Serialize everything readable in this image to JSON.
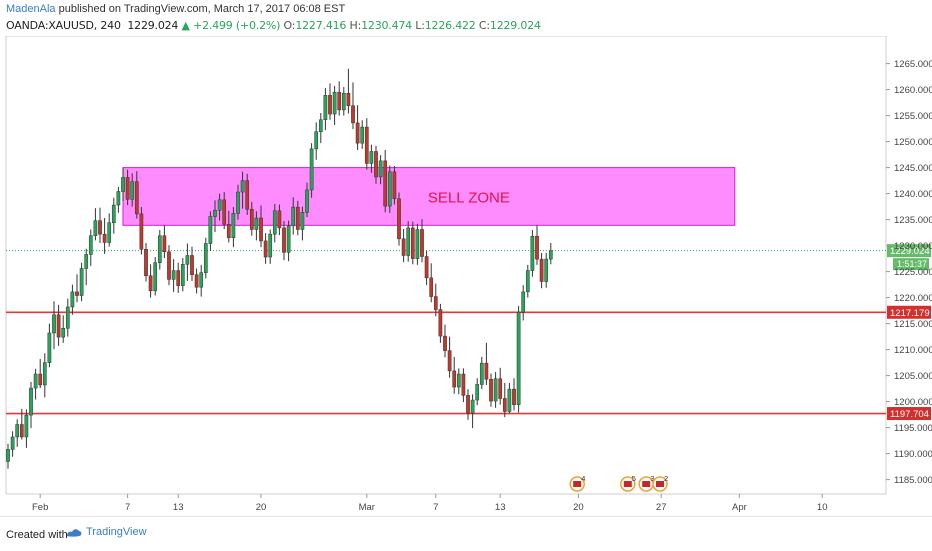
{
  "header": {
    "author": "MadenAla",
    "published": " published on TradingView.com, March 17, 2017 06:08 EST",
    "symbol": "OANDA:XAUUSD, 240",
    "last": "1229.024",
    "change": "▲ +2.499 (+0.2%)",
    "o_label": "O:",
    "o_value": "1227.416",
    "h_label": "H:",
    "h_value": "1230.474",
    "l_label": "L:",
    "l_value": "1226.422",
    "c_label": "C:",
    "c_value": "1229.024"
  },
  "footer": {
    "created_with": "Created with",
    "brand": "TradingView"
  },
  "colors": {
    "up": "#26a65b",
    "down": "#c0392b",
    "zone_fill": "#ff66ff",
    "support_line": "#e53935",
    "price_tag": "#d32f2f",
    "last_tag": "#66bb6a"
  },
  "chart_data": {
    "type": "candlestick",
    "symbol": "OANDA:XAUUSD",
    "timeframe": "240",
    "ylim": [
      1183,
      1268
    ],
    "y_ticks": [
      "1185.000",
      "1190.000",
      "1195.000",
      "1200.000",
      "1205.000",
      "1210.000",
      "1215.000",
      "1220.000",
      "1225.000",
      "1230.000",
      "1235.000",
      "1240.000",
      "1245.000",
      "1250.000",
      "1255.000",
      "1260.000",
      "1265.000"
    ],
    "x_ticks": [
      "Feb",
      "7",
      "13",
      "20",
      "Mar",
      "7",
      "13",
      "20",
      "27",
      "Apr",
      "10"
    ],
    "zone": {
      "label": "SELL ZONE",
      "low": 1233.9,
      "high": 1245.0,
      "from_bar": 25,
      "to_bar": 158
    },
    "levels": [
      {
        "value": 1217.179,
        "label": "1217.179"
      },
      {
        "value": 1197.704,
        "label": "1197.704"
      }
    ],
    "last_price": {
      "value": 1229.024,
      "label": "1229.024",
      "countdown": "1:51:37"
    },
    "event_markers": [
      "4",
      "5",
      "3",
      "2"
    ],
    "ohlc": [
      [
        1188.5,
        1191.9,
        1187.1,
        1190.8
      ],
      [
        1190.8,
        1194.3,
        1189.4,
        1193.2
      ],
      [
        1193.2,
        1196.6,
        1191.3,
        1195.6
      ],
      [
        1195.6,
        1198.6,
        1192.7,
        1193.2
      ],
      [
        1193.2,
        1198.5,
        1191.1,
        1197.4
      ],
      [
        1197.4,
        1203.8,
        1194.9,
        1202.6
      ],
      [
        1202.6,
        1206.3,
        1200.4,
        1205.3
      ],
      [
        1205.3,
        1208.2,
        1202.6,
        1203.2
      ],
      [
        1203.2,
        1209.3,
        1200.8,
        1207.5
      ],
      [
        1207.5,
        1215.0,
        1206.6,
        1213.2
      ],
      [
        1213.2,
        1219.3,
        1210.1,
        1216.7
      ],
      [
        1216.7,
        1218.6,
        1210.7,
        1212.4
      ],
      [
        1212.4,
        1216.6,
        1211.3,
        1214.1
      ],
      [
        1214.1,
        1219.8,
        1212.5,
        1218.2
      ],
      [
        1218.2,
        1222.5,
        1216.7,
        1221.1
      ],
      [
        1221.1,
        1224.5,
        1219.1,
        1220.4
      ],
      [
        1220.4,
        1226.7,
        1219.3,
        1225.6
      ],
      [
        1225.6,
        1229.4,
        1222.4,
        1228.3
      ],
      [
        1228.3,
        1233.1,
        1226.1,
        1231.9
      ],
      [
        1231.9,
        1237.2,
        1231.0,
        1234.8
      ],
      [
        1234.8,
        1237.3,
        1230.5,
        1232.2
      ],
      [
        1232.2,
        1235.3,
        1228.4,
        1230.6
      ],
      [
        1230.6,
        1236.2,
        1229.8,
        1234.4
      ],
      [
        1234.4,
        1239.2,
        1232.3,
        1237.8
      ],
      [
        1237.8,
        1241.3,
        1236.3,
        1240.4
      ],
      [
        1240.4,
        1245.0,
        1238.6,
        1243.1
      ],
      [
        1243.1,
        1244.6,
        1237.8,
        1238.9
      ],
      [
        1238.9,
        1243.9,
        1237.5,
        1242.3
      ],
      [
        1242.3,
        1244.3,
        1235.2,
        1236.1
      ],
      [
        1236.1,
        1237.4,
        1228.3,
        1229.3
      ],
      [
        1229.3,
        1230.5,
        1223.1,
        1224.2
      ],
      [
        1224.2,
        1226.4,
        1220.0,
        1221.3
      ],
      [
        1221.3,
        1227.8,
        1220.4,
        1226.7
      ],
      [
        1226.7,
        1233.0,
        1225.4,
        1231.9
      ],
      [
        1231.9,
        1233.9,
        1227.6,
        1228.8
      ],
      [
        1228.8,
        1230.1,
        1222.4,
        1223.5
      ],
      [
        1223.5,
        1227.4,
        1221.1,
        1225.2
      ],
      [
        1225.2,
        1226.7,
        1220.9,
        1222.3
      ],
      [
        1222.3,
        1227.6,
        1221.2,
        1226.4
      ],
      [
        1226.4,
        1230.4,
        1223.2,
        1228.1
      ],
      [
        1228.1,
        1229.8,
        1223.2,
        1224.4
      ],
      [
        1224.4,
        1225.6,
        1220.8,
        1222.0
      ],
      [
        1222.0,
        1226.3,
        1220.2,
        1224.8
      ],
      [
        1224.8,
        1231.5,
        1223.7,
        1230.4
      ],
      [
        1230.4,
        1236.6,
        1229.0,
        1235.6
      ],
      [
        1235.6,
        1238.7,
        1232.6,
        1236.8
      ],
      [
        1236.8,
        1240.0,
        1234.8,
        1238.8
      ],
      [
        1238.8,
        1240.3,
        1233.2,
        1234.1
      ],
      [
        1234.1,
        1236.7,
        1230.6,
        1231.5
      ],
      [
        1231.5,
        1237.4,
        1229.7,
        1236.2
      ],
      [
        1236.2,
        1241.7,
        1235.0,
        1240.3
      ],
      [
        1240.3,
        1244.2,
        1237.1,
        1242.5
      ],
      [
        1242.5,
        1243.8,
        1235.9,
        1237.0
      ],
      [
        1237.0,
        1238.4,
        1231.9,
        1233.1
      ],
      [
        1233.1,
        1236.6,
        1231.0,
        1235.3
      ],
      [
        1235.3,
        1237.7,
        1229.7,
        1230.9
      ],
      [
        1230.9,
        1232.4,
        1226.5,
        1227.8
      ],
      [
        1227.8,
        1233.1,
        1226.5,
        1232.2
      ],
      [
        1232.2,
        1238.0,
        1230.6,
        1236.7
      ],
      [
        1236.7,
        1237.9,
        1232.0,
        1233.4
      ],
      [
        1233.4,
        1234.7,
        1227.2,
        1228.7
      ],
      [
        1228.7,
        1234.8,
        1227.0,
        1233.8
      ],
      [
        1233.8,
        1239.3,
        1232.1,
        1237.4
      ],
      [
        1237.4,
        1238.6,
        1232.0,
        1233.1
      ],
      [
        1233.1,
        1237.5,
        1231.0,
        1236.4
      ],
      [
        1236.4,
        1242.1,
        1235.5,
        1240.7
      ],
      [
        1240.7,
        1249.7,
        1239.2,
        1248.6
      ],
      [
        1248.6,
        1253.7,
        1246.5,
        1251.9
      ],
      [
        1251.9,
        1255.5,
        1249.7,
        1254.2
      ],
      [
        1254.2,
        1260.3,
        1252.2,
        1258.9
      ],
      [
        1258.9,
        1261.2,
        1254.2,
        1255.3
      ],
      [
        1255.3,
        1260.7,
        1253.2,
        1259.5
      ],
      [
        1259.5,
        1261.6,
        1255.0,
        1256.1
      ],
      [
        1256.1,
        1260.5,
        1255.0,
        1259.3
      ],
      [
        1259.3,
        1264.0,
        1255.4,
        1256.9
      ],
      [
        1256.9,
        1261.4,
        1252.4,
        1253.6
      ],
      [
        1253.6,
        1257.0,
        1248.4,
        1249.7
      ],
      [
        1249.7,
        1254.1,
        1248.6,
        1252.8
      ],
      [
        1252.8,
        1254.5,
        1244.6,
        1245.8
      ],
      [
        1245.8,
        1249.4,
        1244.0,
        1248.1
      ],
      [
        1248.1,
        1249.2,
        1241.9,
        1243.2
      ],
      [
        1243.2,
        1247.4,
        1241.8,
        1246.3
      ],
      [
        1246.3,
        1248.4,
        1236.4,
        1237.6
      ],
      [
        1237.6,
        1245.4,
        1236.3,
        1244.2
      ],
      [
        1244.2,
        1245.3,
        1237.9,
        1239.0
      ],
      [
        1239.0,
        1240.2,
        1230.0,
        1231.3
      ],
      [
        1231.3,
        1233.2,
        1226.8,
        1228.1
      ],
      [
        1228.1,
        1234.7,
        1226.9,
        1233.4
      ],
      [
        1233.4,
        1234.6,
        1226.4,
        1227.5
      ],
      [
        1227.5,
        1234.2,
        1226.3,
        1233.1
      ],
      [
        1233.1,
        1235.1,
        1226.8,
        1227.9
      ],
      [
        1227.9,
        1229.0,
        1222.4,
        1223.8
      ],
      [
        1223.8,
        1226.6,
        1219.1,
        1220.2
      ],
      [
        1220.2,
        1222.7,
        1216.4,
        1217.7
      ],
      [
        1217.7,
        1218.8,
        1211.3,
        1212.6
      ],
      [
        1212.6,
        1214.8,
        1208.5,
        1209.8
      ],
      [
        1209.8,
        1212.5,
        1204.6,
        1205.9
      ],
      [
        1205.9,
        1208.6,
        1201.5,
        1202.8
      ],
      [
        1202.8,
        1206.4,
        1201.4,
        1205.3
      ],
      [
        1205.3,
        1206.4,
        1199.9,
        1201.2
      ],
      [
        1201.2,
        1202.4,
        1196.5,
        1197.8
      ],
      [
        1197.8,
        1201.4,
        1194.9,
        1200.3
      ],
      [
        1200.3,
        1204.5,
        1199.3,
        1203.3
      ],
      [
        1203.3,
        1208.6,
        1202.4,
        1207.4
      ],
      [
        1207.4,
        1211.3,
        1203.2,
        1204.3
      ],
      [
        1204.3,
        1205.4,
        1199.0,
        1200.1
      ],
      [
        1200.1,
        1205.7,
        1198.8,
        1204.4
      ],
      [
        1204.4,
        1206.5,
        1199.4,
        1200.6
      ],
      [
        1200.6,
        1203.6,
        1197.0,
        1198.1
      ],
      [
        1198.1,
        1203.6,
        1197.8,
        1202.4
      ],
      [
        1202.4,
        1204.5,
        1198.3,
        1199.4
      ],
      [
        1199.4,
        1218.4,
        1197.9,
        1217.2
      ],
      [
        1217.2,
        1222.4,
        1215.6,
        1221.1
      ],
      [
        1221.1,
        1226.3,
        1220.0,
        1225.2
      ],
      [
        1225.2,
        1233.0,
        1224.0,
        1231.8
      ],
      [
        1231.8,
        1233.9,
        1226.3,
        1227.4
      ],
      [
        1227.4,
        1228.6,
        1221.8,
        1223.1
      ],
      [
        1223.1,
        1228.6,
        1221.9,
        1227.4
      ],
      [
        1227.4,
        1230.5,
        1226.4,
        1229.0
      ]
    ]
  }
}
